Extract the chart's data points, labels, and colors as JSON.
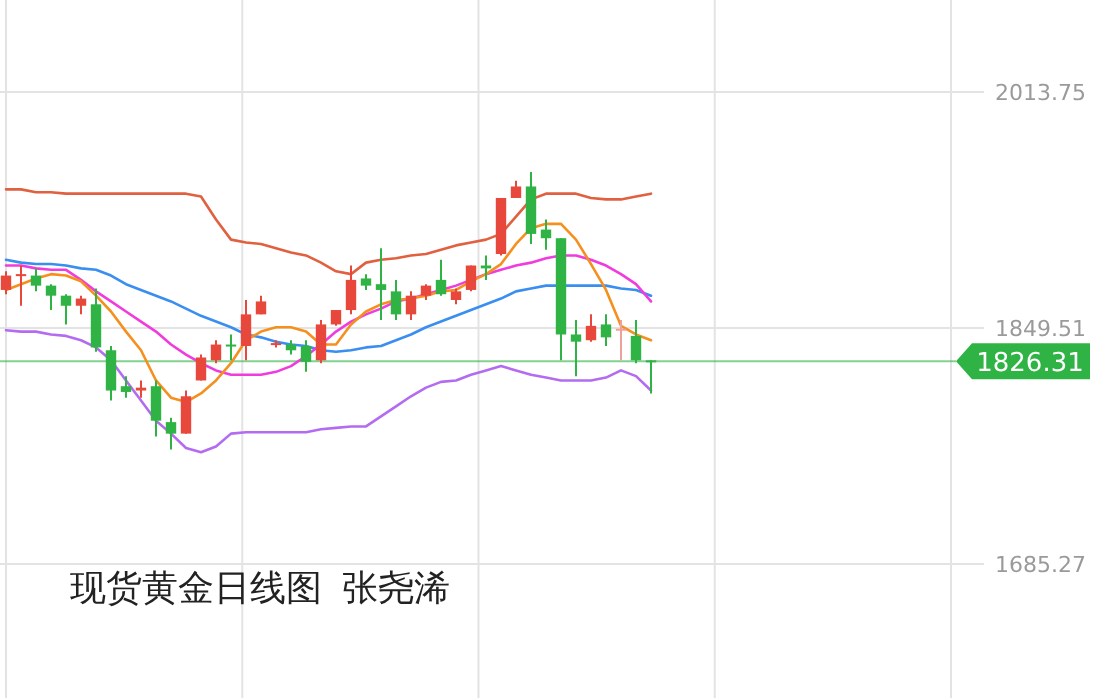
{
  "chart_data": {
    "type": "candlestick",
    "title": "现货黄金日线图  张尧浠",
    "categories": [
      null,
      null,
      null,
      null,
      null,
      null,
      null,
      null,
      null,
      null,
      null,
      null,
      null,
      null,
      null,
      null,
      null,
      null,
      null,
      null,
      null,
      null,
      null,
      null,
      null,
      null,
      null,
      null,
      null,
      null,
      null,
      null,
      null,
      null,
      null,
      null,
      null,
      null,
      null,
      null,
      null,
      null,
      null,
      null
    ],
    "ohlc": [
      [
        1876,
        1889,
        1873,
        1886
      ],
      [
        1886,
        1893,
        1865,
        1887
      ],
      [
        1886,
        1891,
        1875,
        1879
      ],
      [
        1879,
        1880,
        1862,
        1872
      ],
      [
        1872,
        1873,
        1852,
        1865
      ],
      [
        1865,
        1872,
        1859,
        1870
      ],
      [
        1866,
        1877,
        1833,
        1836
      ],
      [
        1834,
        1837,
        1799,
        1806
      ],
      [
        1809,
        1816,
        1801,
        1805
      ],
      [
        1806,
        1813,
        1801,
        1808
      ],
      [
        1809,
        1813,
        1774,
        1785
      ],
      [
        1784,
        1787,
        1765,
        1776
      ],
      [
        1776,
        1806,
        1776,
        1802
      ],
      [
        1813,
        1831,
        1813,
        1829
      ],
      [
        1827,
        1841,
        1825,
        1838
      ],
      [
        1838,
        1845,
        1827,
        1837
      ],
      [
        1837,
        1869,
        1827,
        1859
      ],
      [
        1859,
        1872,
        1859,
        1868
      ],
      [
        1838,
        1841,
        1836,
        1839
      ],
      [
        1838,
        1841,
        1831,
        1834
      ],
      [
        1837,
        1841,
        1819,
        1826
      ],
      [
        1827,
        1855,
        1825,
        1852
      ],
      [
        1852,
        1862,
        1851,
        1862
      ],
      [
        1862,
        1893,
        1859,
        1883
      ],
      [
        1884,
        1887,
        1876,
        1879
      ],
      [
        1880,
        1905,
        1855,
        1876
      ],
      [
        1875,
        1883,
        1855,
        1859
      ],
      [
        1859,
        1875,
        1855,
        1872
      ],
      [
        1872,
        1880,
        1869,
        1879
      ],
      [
        1883,
        1897,
        1872,
        1873
      ],
      [
        1869,
        1877,
        1866,
        1875
      ],
      [
        1876,
        1893,
        1875,
        1893
      ],
      [
        1893,
        1900,
        1883,
        1891
      ],
      [
        1901,
        1940,
        1900,
        1940
      ],
      [
        1940,
        1952,
        1940,
        1948
      ],
      [
        1948,
        1958,
        1908,
        1915
      ],
      [
        1918,
        1925,
        1904,
        1912
      ],
      [
        1912,
        1912,
        1827,
        1845
      ],
      [
        1845,
        1855,
        1816,
        1840
      ],
      [
        1841,
        1859,
        1840,
        1851
      ],
      [
        1852,
        1859,
        1837,
        1843
      ],
      [
        1848,
        1855,
        1827,
        1849
      ],
      [
        1844,
        1855,
        1825,
        1827
      ],
      [
        1827,
        1827,
        1804,
        1826.31
      ]
    ],
    "colors": [
      "#e8483b",
      "#e8483b",
      "#2fb344",
      "#2fb344",
      "#2fb344",
      "#e8483b",
      "#2fb344",
      "#2fb344",
      "#2fb344",
      "#e8483b",
      "#2fb344",
      "#2fb344",
      "#e8483b",
      "#e8483b",
      "#e8483b",
      "#2fb344",
      "#e8483b",
      "#e8483b",
      "#e8483b",
      "#2fb344",
      "#2fb344",
      "#e8483b",
      "#e8483b",
      "#e8483b",
      "#2fb344",
      "#2fb344",
      "#2fb344",
      "#e8483b",
      "#e8483b",
      "#2fb344",
      "#e8483b",
      "#e8483b",
      "#2fb344",
      "#e8483b",
      "#e8483b",
      "#2fb344",
      "#2fb344",
      "#2fb344",
      "#2fb344",
      "#e8483b",
      "#2fb344",
      "#f0a09a",
      "#2fb344",
      "#2fb344"
    ],
    "series": [
      {
        "type": "line",
        "color": "#e0603f",
        "values": [
          1946,
          1946,
          1944,
          1944,
          1943,
          1943,
          1943,
          1943,
          1943,
          1943,
          1943,
          1943,
          1943,
          1941,
          1925,
          1911,
          1909,
          1908,
          1905,
          1902,
          1900,
          1895,
          1889,
          1887,
          1895,
          1897,
          1898,
          1900,
          1901,
          1904,
          1907,
          1909,
          1911,
          1915,
          1927,
          1939,
          1943,
          1943,
          1943,
          1940,
          1939,
          1939,
          1941,
          1943
        ]
      },
      {
        "type": "line",
        "color": "#b36cf0",
        "values": [
          1848,
          1847,
          1847,
          1845,
          1844,
          1841,
          1836,
          1827,
          1813,
          1799,
          1785,
          1776,
          1766,
          1763,
          1767,
          1776,
          1777,
          1777,
          1777,
          1777,
          1777,
          1779,
          1780,
          1781,
          1781,
          1788,
          1795,
          1802,
          1808,
          1812,
          1813,
          1817,
          1820,
          1823,
          1820,
          1817,
          1815,
          1813,
          1813,
          1813,
          1815,
          1820,
          1816,
          1806
        ]
      },
      {
        "type": "line",
        "color": "#3a8ef0",
        "values": [
          1897,
          1895,
          1894,
          1894,
          1893,
          1891,
          1890,
          1886,
          1880,
          1876,
          1872,
          1868,
          1863,
          1858,
          1854,
          1850,
          1845,
          1843,
          1840,
          1838,
          1837,
          1834,
          1833,
          1834,
          1836,
          1837,
          1841,
          1845,
          1850,
          1854,
          1858,
          1862,
          1866,
          1870,
          1875,
          1877,
          1879,
          1879,
          1879,
          1879,
          1879,
          1877,
          1876,
          1872
        ]
      },
      {
        "type": "line",
        "color": "#f03cdc",
        "values": [
          1893,
          1893,
          1891,
          1890,
          1890,
          1883,
          1875,
          1868,
          1861,
          1854,
          1847,
          1838,
          1831,
          1825,
          1820,
          1817,
          1817,
          1817,
          1819,
          1823,
          1830,
          1838,
          1847,
          1854,
          1859,
          1863,
          1868,
          1870,
          1873,
          1876,
          1879,
          1883,
          1887,
          1890,
          1893,
          1895,
          1898,
          1900,
          1900,
          1897,
          1893,
          1887,
          1880,
          1868
        ]
      },
      {
        "type": "line",
        "color": "#f5901e",
        "values": [
          1876,
          1880,
          1884,
          1887,
          1886,
          1882,
          1872,
          1861,
          1847,
          1834,
          1813,
          1801,
          1798,
          1804,
          1813,
          1825,
          1841,
          1847,
          1850,
          1850,
          1847,
          1838,
          1838,
          1852,
          1861,
          1866,
          1869,
          1870,
          1872,
          1875,
          1876,
          1882,
          1887,
          1894,
          1908,
          1919,
          1922,
          1922,
          1911,
          1894,
          1876,
          1851,
          1845,
          1841
        ]
      }
    ],
    "ylim": [
      1685.27,
      2013.75
    ],
    "yticks": [
      2013.75,
      1849.51,
      1685.27
    ],
    "tick_labels": "y",
    "grid": true,
    "ref_lines": [
      {
        "axis": "y",
        "value": 1826.31,
        "label": "1826.31",
        "color": "#2fb344"
      }
    ]
  }
}
